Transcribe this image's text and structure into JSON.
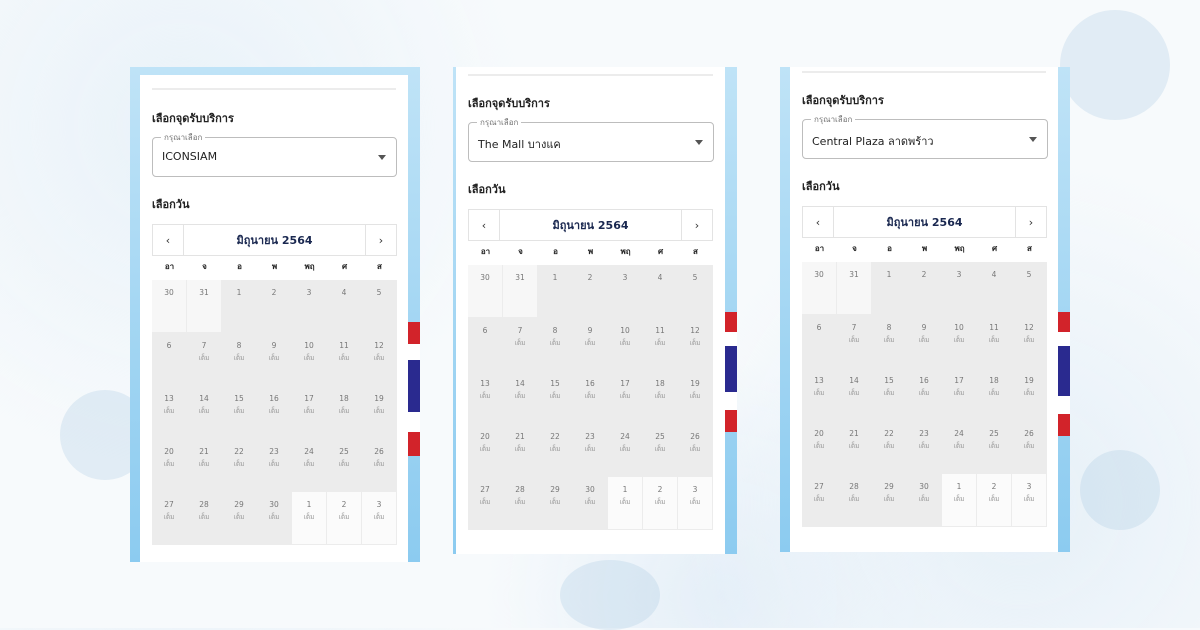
{
  "phones": [
    {
      "section_location_label": "เลือกจุดรับบริการ",
      "select_hint": "กรุณาเลือก",
      "select_value": "ICONSIAM",
      "section_date_label": "เลือกวัน",
      "month": "มิถุนายน 2564",
      "prev": "‹",
      "next": "›"
    },
    {
      "section_location_label": "เลือกจุดรับบริการ",
      "select_hint": "กรุณาเลือก",
      "select_value": "The Mall บางแค",
      "section_date_label": "เลือกวัน",
      "month": "มิถุนายน 2564",
      "prev": "‹",
      "next": "›"
    },
    {
      "section_location_label": "เลือกจุดรับบริการ",
      "select_hint": "กรุณาเลือก",
      "select_value": "Central Plaza ลาดพร้าว",
      "section_date_label": "เลือกวัน",
      "month": "มิถุนายน 2564",
      "prev": "‹",
      "next": "›"
    }
  ],
  "weekdays": [
    "อา",
    "จ",
    "อ",
    "พ",
    "พฤ",
    "ศ",
    "ส"
  ],
  "full_label": "เต็ม",
  "weeks": [
    [
      {
        "d": "30",
        "out": true
      },
      {
        "d": "31",
        "out": true
      },
      {
        "d": "1"
      },
      {
        "d": "2"
      },
      {
        "d": "3"
      },
      {
        "d": "4"
      },
      {
        "d": "5"
      }
    ],
    [
      {
        "d": "6"
      },
      {
        "d": "7",
        "full": true
      },
      {
        "d": "8",
        "full": true
      },
      {
        "d": "9",
        "full": true
      },
      {
        "d": "10",
        "full": true
      },
      {
        "d": "11",
        "full": true
      },
      {
        "d": "12",
        "full": true
      }
    ],
    [
      {
        "d": "13",
        "full": true
      },
      {
        "d": "14",
        "full": true
      },
      {
        "d": "15",
        "full": true
      },
      {
        "d": "16",
        "full": true
      },
      {
        "d": "17",
        "full": true
      },
      {
        "d": "18",
        "full": true
      },
      {
        "d": "19",
        "full": true
      }
    ],
    [
      {
        "d": "20",
        "full": true
      },
      {
        "d": "21",
        "full": true
      },
      {
        "d": "22",
        "full": true
      },
      {
        "d": "23",
        "full": true
      },
      {
        "d": "24",
        "full": true
      },
      {
        "d": "25",
        "full": true
      },
      {
        "d": "26",
        "full": true
      }
    ],
    [
      {
        "d": "27",
        "full": true
      },
      {
        "d": "28",
        "full": true
      },
      {
        "d": "29",
        "full": true
      },
      {
        "d": "30",
        "full": true
      },
      {
        "d": "1",
        "full": true,
        "out": true
      },
      {
        "d": "2",
        "full": true,
        "out": true
      },
      {
        "d": "3",
        "full": true,
        "out": true
      }
    ]
  ],
  "colors": {
    "frame": "#9fd4f2",
    "month_text": "#1a2850",
    "flag_red": "#d2232a",
    "flag_blue": "#2a2a8f"
  }
}
